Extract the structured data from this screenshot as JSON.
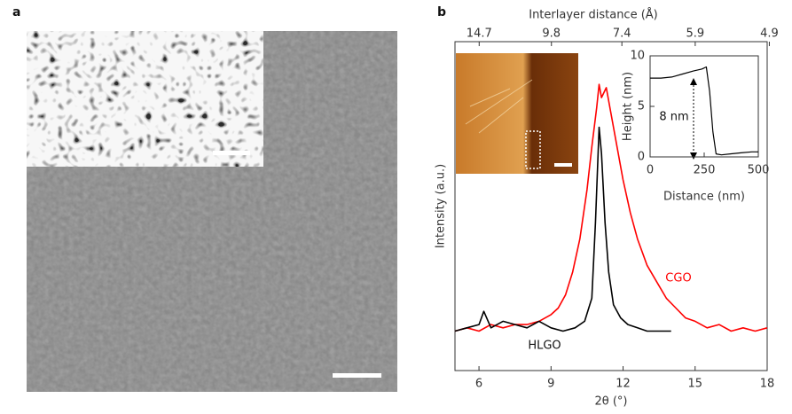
{
  "figure_labels": [
    "a",
    "b"
  ],
  "chart_data": [
    {
      "type": "line",
      "x_label": "2θ (°)",
      "y_label": "Intensity (a.u.)",
      "x2_label": "Interlayer distance (Å)",
      "xlim": [
        5,
        18
      ],
      "xticks": [
        6,
        9,
        12,
        15,
        18
      ],
      "x2ticks": [
        14.7,
        9.8,
        7.4,
        5.9,
        4.9
      ],
      "ylim": [
        0,
        100
      ],
      "annotations": [
        "CGO",
        "HLGO"
      ],
      "series": [
        {
          "name": "CGO",
          "color": "#ff0000",
          "x": [
            5,
            5.5,
            6,
            6.5,
            7,
            7.5,
            8,
            8.5,
            9,
            9.3,
            9.6,
            9.9,
            10.2,
            10.5,
            10.7,
            10.9,
            11.0,
            11.1,
            11.3,
            11.5,
            11.7,
            12.0,
            12.3,
            12.6,
            13.0,
            13.4,
            13.8,
            14.2,
            14.6,
            15.0,
            15.5,
            16,
            16.5,
            17,
            17.5,
            18
          ],
          "values": [
            12,
            13,
            12,
            14,
            13,
            14,
            14,
            15,
            17,
            19,
            23,
            30,
            40,
            55,
            68,
            80,
            87,
            83,
            86,
            78,
            70,
            58,
            48,
            40,
            32,
            27,
            22,
            19,
            16,
            15,
            13,
            14,
            12,
            13,
            12,
            13
          ]
        },
        {
          "name": "HLGO",
          "color": "#000000",
          "x": [
            5,
            5.5,
            6,
            6.2,
            6.5,
            7,
            7.5,
            8,
            8.5,
            9,
            9.5,
            10,
            10.4,
            10.7,
            10.85,
            11.0,
            11.1,
            11.25,
            11.4,
            11.6,
            11.9,
            12.2,
            12.6,
            13.0,
            13.5,
            14
          ],
          "values": [
            12,
            13,
            14,
            18,
            13,
            15,
            14,
            13,
            15,
            13,
            12,
            13,
            15,
            22,
            45,
            74,
            66,
            45,
            30,
            20,
            16,
            14,
            13,
            12,
            12,
            12
          ]
        }
      ]
    },
    {
      "type": "line",
      "x_label": "Distance (nm)",
      "y_label": "Height (nm)",
      "xlim": [
        0,
        500
      ],
      "xticks": [
        0,
        250,
        500
      ],
      "ylim": [
        0,
        10
      ],
      "yticks": [
        0,
        5,
        10
      ],
      "annotations": [
        "8 nm"
      ],
      "series": [
        {
          "name": null,
          "color": "#000000",
          "x": [
            0,
            50,
            100,
            150,
            200,
            240,
            260,
            275,
            290,
            305,
            330,
            370,
            420,
            470,
            500
          ],
          "values": [
            7.8,
            7.8,
            7.9,
            8.2,
            8.5,
            8.7,
            8.9,
            6.5,
            2.5,
            0.3,
            0.2,
            0.3,
            0.4,
            0.5,
            0.5
          ]
        }
      ]
    }
  ]
}
